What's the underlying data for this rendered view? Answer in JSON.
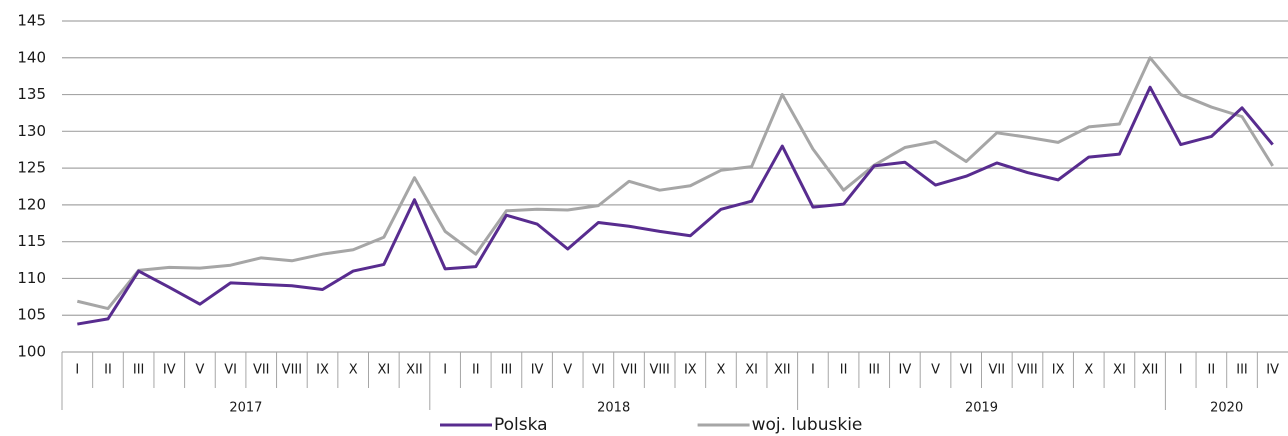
{
  "chart_data": {
    "type": "line",
    "category_groups": [
      {
        "name": "2017",
        "categories": [
          "I",
          "II",
          "III",
          "IV",
          "V",
          "VI",
          "VII",
          "VIII",
          "IX",
          "X",
          "XI",
          "XII"
        ]
      },
      {
        "name": "2018",
        "categories": [
          "I",
          "II",
          "III",
          "IV",
          "V",
          "VI",
          "VII",
          "VIII",
          "IX",
          "X",
          "XI",
          "XII"
        ]
      },
      {
        "name": "2019",
        "categories": [
          "I",
          "II",
          "III",
          "IV",
          "V",
          "VI",
          "VII",
          "VIII",
          "IX",
          "X",
          "XI",
          "XII"
        ]
      },
      {
        "name": "2020",
        "categories": [
          "I",
          "II",
          "III",
          "IV"
        ]
      }
    ],
    "series": [
      {
        "name": "Polska",
        "color": "#582c8f",
        "values": [
          103.8,
          104.5,
          111,
          108.8,
          106.5,
          109.4,
          109.2,
          109,
          108.5,
          111,
          111.9,
          120.7,
          111.3,
          111.6,
          118.6,
          117.4,
          114,
          117.6,
          117.1,
          116.4,
          115.8,
          119.4,
          120.5,
          128,
          119.7,
          120.1,
          125.3,
          125.8,
          122.7,
          123.9,
          125.7,
          124.4,
          123.4,
          126.5,
          126.9,
          136,
          128.2,
          129.3,
          133.2,
          128.2
        ]
      },
      {
        "name": "woj. lubuskie",
        "color": "#a6a6a6",
        "values": [
          106.9,
          105.9,
          111.1,
          111.5,
          111.4,
          111.8,
          112.8,
          112.4,
          113.3,
          113.9,
          115.6,
          123.7,
          116.4,
          113.3,
          119.2,
          119.4,
          119.3,
          119.9,
          123.2,
          122,
          122.6,
          124.7,
          125.2,
          135,
          127.6,
          122,
          125.4,
          127.8,
          128.6,
          125.9,
          129.8,
          129.2,
          128.5,
          130.6,
          131,
          140,
          135,
          133.3,
          132,
          125.3
        ]
      }
    ],
    "ylim": [
      100,
      145
    ],
    "yticks": [
      100,
      105,
      110,
      115,
      120,
      125,
      130,
      135,
      140,
      145
    ],
    "grid": true
  }
}
